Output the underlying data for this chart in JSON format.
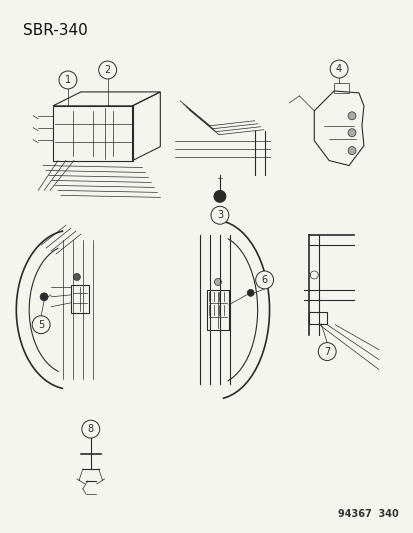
{
  "title": "SBR-340",
  "footer": "94367  340",
  "background_color": "#f5f5f0",
  "line_color": "#2a2a2a",
  "text_color": "#111111",
  "fig_width": 4.14,
  "fig_height": 5.33,
  "dpi": 100,
  "title_fontsize": 11,
  "footer_fontsize": 7,
  "circle_r": 0.019
}
